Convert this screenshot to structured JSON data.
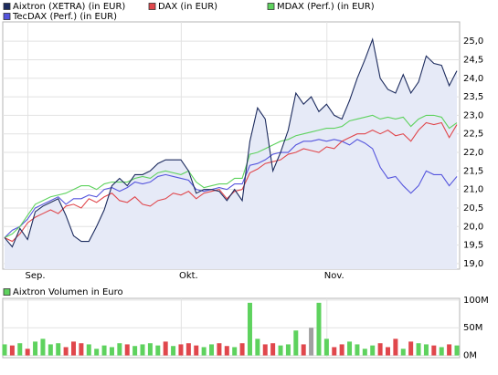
{
  "chart_data": [
    {
      "type": "line",
      "categories": [
        null,
        null,
        null,
        null,
        "Sep.",
        null,
        null,
        null,
        null,
        null,
        null,
        null,
        null,
        null,
        null,
        null,
        null,
        null,
        null,
        null,
        null,
        null,
        null,
        null,
        "Okt.",
        null,
        null,
        null,
        null,
        null,
        null,
        null,
        null,
        null,
        null,
        null,
        null,
        null,
        null,
        null,
        null,
        null,
        null,
        "Nov.",
        null,
        null,
        null,
        null,
        null,
        null,
        null,
        null,
        null,
        null,
        null,
        null,
        null,
        null,
        null,
        null
      ],
      "series": [
        {
          "name": "Aixtron (XETRA) (in EUR)",
          "color": "#1c2b5e",
          "fill": "#e6eaf7",
          "values": [
            19.7,
            19.45,
            19.95,
            19.65,
            20.4,
            20.55,
            20.65,
            20.75,
            20.3,
            19.75,
            19.6,
            19.6,
            20.0,
            20.45,
            21.1,
            21.3,
            21.1,
            21.4,
            21.4,
            21.5,
            21.7,
            21.8,
            21.8,
            21.8,
            21.5,
            20.9,
            21.0,
            21.0,
            20.95,
            20.7,
            21.0,
            20.7,
            22.3,
            23.2,
            22.9,
            21.5,
            22.0,
            22.6,
            23.6,
            23.3,
            23.5,
            23.1,
            23.3,
            23.0,
            22.9,
            23.4,
            24.0,
            24.5,
            25.05,
            24.0,
            23.7,
            23.6,
            24.1,
            23.6,
            23.9,
            24.6,
            24.4,
            24.35,
            23.8,
            24.2
          ]
        },
        {
          "name": "DAX (in EUR)",
          "color": "#e0474c",
          "values": [
            19.7,
            19.6,
            19.8,
            20.1,
            20.25,
            20.35,
            20.45,
            20.35,
            20.55,
            20.6,
            20.5,
            20.75,
            20.65,
            20.8,
            20.9,
            20.7,
            20.65,
            20.8,
            20.6,
            20.55,
            20.7,
            20.75,
            20.9,
            20.85,
            20.95,
            20.75,
            20.9,
            20.95,
            21.0,
            20.75,
            20.95,
            21.0,
            21.45,
            21.55,
            21.7,
            21.75,
            21.8,
            21.95,
            22.0,
            22.1,
            22.05,
            22.0,
            22.15,
            22.1,
            22.3,
            22.4,
            22.5,
            22.5,
            22.6,
            22.5,
            22.6,
            22.45,
            22.5,
            22.3,
            22.6,
            22.8,
            22.75,
            22.8,
            22.4,
            22.75
          ]
        },
        {
          "name": "MDAX (Perf.) (in EUR)",
          "color": "#5ed25e",
          "values": [
            19.7,
            19.8,
            20.0,
            20.3,
            20.6,
            20.7,
            20.8,
            20.85,
            20.9,
            21.0,
            21.1,
            21.1,
            21.0,
            21.15,
            21.2,
            21.2,
            21.2,
            21.3,
            21.35,
            21.3,
            21.45,
            21.5,
            21.45,
            21.4,
            21.5,
            21.2,
            21.05,
            21.1,
            21.15,
            21.15,
            21.3,
            21.3,
            21.95,
            22.0,
            22.1,
            22.2,
            22.3,
            22.35,
            22.45,
            22.5,
            22.55,
            22.6,
            22.65,
            22.65,
            22.7,
            22.85,
            22.9,
            22.95,
            23.0,
            22.9,
            22.95,
            22.9,
            22.95,
            22.7,
            22.9,
            23.0,
            23.0,
            22.95,
            22.65,
            22.8
          ]
        },
        {
          "name": "TecDAX (Perf.) (in EUR)",
          "color": "#5555dd",
          "values": [
            19.7,
            19.9,
            20.0,
            20.2,
            20.5,
            20.6,
            20.7,
            20.8,
            20.6,
            20.75,
            20.75,
            20.85,
            20.8,
            21.0,
            21.05,
            20.95,
            21.05,
            21.2,
            21.15,
            21.2,
            21.35,
            21.4,
            21.35,
            21.3,
            21.25,
            21.0,
            20.95,
            21.0,
            21.05,
            21.0,
            21.15,
            21.15,
            21.65,
            21.7,
            21.8,
            21.95,
            22.0,
            22.0,
            22.2,
            22.3,
            22.3,
            22.35,
            22.3,
            22.35,
            22.3,
            22.2,
            22.35,
            22.25,
            22.1,
            21.6,
            21.3,
            21.35,
            21.1,
            20.9,
            21.1,
            21.5,
            21.4,
            21.4,
            21.1,
            21.35
          ]
        }
      ],
      "ylim": [
        18.85,
        25.52
      ],
      "yticks": [
        {
          "value": 19,
          "label": "19,0"
        },
        {
          "value": 19.5,
          "label": "19,5"
        },
        {
          "value": 20,
          "label": "20,0"
        },
        {
          "value": 20.5,
          "label": "20,5"
        },
        {
          "value": 21,
          "label": "21,0"
        },
        {
          "value": 21.5,
          "label": "21,5"
        },
        {
          "value": 22,
          "label": "22,0"
        },
        {
          "value": 22.5,
          "label": "22,5"
        },
        {
          "value": 23,
          "label": "23,0"
        },
        {
          "value": 23.5,
          "label": "23,5"
        },
        {
          "value": 24,
          "label": "24,0"
        },
        {
          "value": 24.5,
          "label": "24,5"
        },
        {
          "value": 25,
          "label": "25,0"
        }
      ],
      "grid": true
    },
    {
      "type": "bar",
      "series": [
        {
          "name": "Aixtron Volumen in Euro",
          "color": "#5ed25e",
          "values": [
            20,
            18,
            22,
            12,
            25,
            30,
            20,
            22,
            15,
            25,
            22,
            20,
            12,
            18,
            15,
            22,
            20,
            17,
            20,
            22,
            18,
            25,
            17,
            20,
            22,
            18,
            15,
            20,
            22,
            17,
            15,
            22,
            95,
            30,
            20,
            22,
            18,
            20,
            45,
            20,
            50,
            95,
            30,
            15,
            20,
            25,
            20,
            12,
            18,
            22,
            15,
            30,
            12,
            25,
            22,
            20,
            18,
            15,
            20,
            18
          ],
          "colors": [
            "#5ed25e",
            "#e0474c",
            "#5ed25e",
            "#e0474c",
            "#5ed25e",
            "#5ed25e",
            "#5ed25e",
            "#5ed25e",
            "#e0474c",
            "#e0474c",
            "#e0474c",
            "#5ed25e",
            "#5ed25e",
            "#5ed25e",
            "#5ed25e",
            "#5ed25e",
            "#e0474c",
            "#5ed25e",
            "#5ed25e",
            "#5ed25e",
            "#5ed25e",
            "#e0474c",
            "#5ed25e",
            "#e0474c",
            "#e0474c",
            "#e0474c",
            "#5ed25e",
            "#5ed25e",
            "#e0474c",
            "#e0474c",
            "#5ed25e",
            "#e0474c",
            "#5ed25e",
            "#5ed25e",
            "#e0474c",
            "#e0474c",
            "#5ed25e",
            "#5ed25e",
            "#5ed25e",
            "#e0474c",
            "#a0a0a0",
            "#5ed25e",
            "#5ed25e",
            "#e0474c",
            "#e0474c",
            "#5ed25e",
            "#5ed25e",
            "#5ed25e",
            "#5ed25e",
            "#e0474c",
            "#e0474c",
            "#e0474c",
            "#5ed25e",
            "#e0474c",
            "#5ed25e",
            "#5ed25e",
            "#e0474c",
            "#5ed25e",
            "#e0474c",
            "#5ed25e"
          ]
        }
      ],
      "ylim": [
        -4,
        103
      ],
      "yticks": [
        {
          "value": 0,
          "label": "0M"
        },
        {
          "value": 50,
          "label": "50M"
        },
        {
          "value": 100,
          "label": "100M"
        }
      ],
      "grid": true
    }
  ]
}
